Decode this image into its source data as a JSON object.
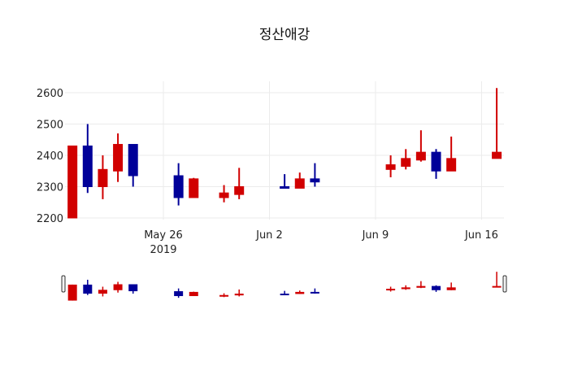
{
  "chart_data": {
    "type": "candlestick",
    "title": "정산애강",
    "xlabel": "",
    "ylabel": "",
    "ylim": [
      2195,
      2640
    ],
    "yticks": [
      2200,
      2300,
      2400,
      2500,
      2600
    ],
    "xticks": [
      {
        "date": "2019-05-26",
        "label": "May 26",
        "sublabel": "2019"
      },
      {
        "date": "2019-06-02",
        "label": "Jun 2"
      },
      {
        "date": "2019-06-09",
        "label": "Jun 9"
      },
      {
        "date": "2019-06-16",
        "label": "Jun 16"
      }
    ],
    "xrange": [
      "2019-05-19.6",
      "2019-06-17.4"
    ],
    "grid": true,
    "increasing_color": "#d10000",
    "decreasing_color": "#000099",
    "rangeslider": true,
    "series": [
      {
        "date": "2019-05-20",
        "open": 2200,
        "high": 2430,
        "low": 2200,
        "close": 2430
      },
      {
        "date": "2019-05-21",
        "open": 2430,
        "high": 2500,
        "low": 2280,
        "close": 2300
      },
      {
        "date": "2019-05-22",
        "open": 2300,
        "high": 2400,
        "low": 2260,
        "close": 2355
      },
      {
        "date": "2019-05-23",
        "open": 2350,
        "high": 2470,
        "low": 2315,
        "close": 2435
      },
      {
        "date": "2019-05-24",
        "open": 2435,
        "high": 2435,
        "low": 2300,
        "close": 2335
      },
      {
        "date": "2019-05-27",
        "open": 2335,
        "high": 2375,
        "low": 2240,
        "close": 2265
      },
      {
        "date": "2019-05-28",
        "open": 2265,
        "high": 2328,
        "low": 2265,
        "close": 2325
      },
      {
        "date": "2019-05-30",
        "open": 2265,
        "high": 2305,
        "low": 2250,
        "close": 2280
      },
      {
        "date": "2019-05-31",
        "open": 2275,
        "high": 2360,
        "low": 2260,
        "close": 2300
      },
      {
        "date": "2019-06-03",
        "open": 2300,
        "high": 2340,
        "low": 2295,
        "close": 2295
      },
      {
        "date": "2019-06-04",
        "open": 2295,
        "high": 2345,
        "low": 2295,
        "close": 2325
      },
      {
        "date": "2019-06-05",
        "open": 2325,
        "high": 2375,
        "low": 2300,
        "close": 2315
      },
      {
        "date": "2019-06-10",
        "open": 2355,
        "high": 2400,
        "low": 2330,
        "close": 2370
      },
      {
        "date": "2019-06-11",
        "open": 2365,
        "high": 2420,
        "low": 2355,
        "close": 2390
      },
      {
        "date": "2019-06-12",
        "open": 2385,
        "high": 2480,
        "low": 2380,
        "close": 2410
      },
      {
        "date": "2019-06-13",
        "open": 2410,
        "high": 2420,
        "low": 2325,
        "close": 2350
      },
      {
        "date": "2019-06-14",
        "open": 2350,
        "high": 2460,
        "low": 2350,
        "close": 2390
      },
      {
        "date": "2019-06-17",
        "open": 2390,
        "high": 2615,
        "low": 2390,
        "close": 2410
      }
    ]
  }
}
